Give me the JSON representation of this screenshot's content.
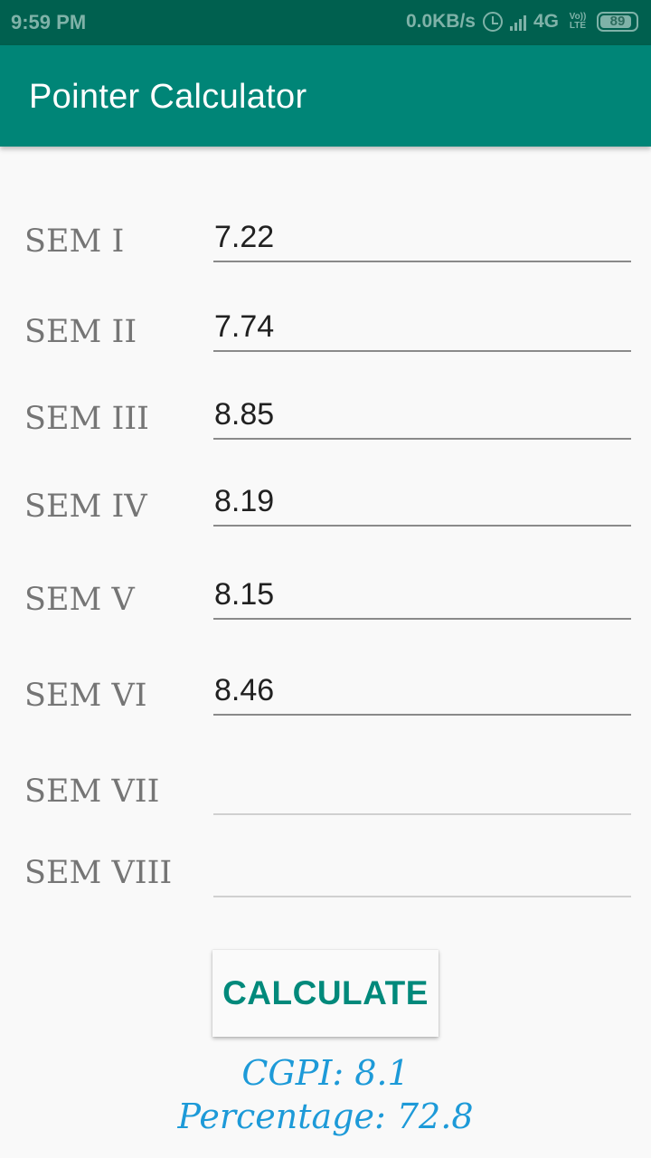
{
  "status_bar": {
    "time": "9:59 PM",
    "network_speed": "0.0KB/s",
    "network_type": "4G",
    "volte_top": "Vo))",
    "volte_bottom": "LTE",
    "battery": "89",
    "battery_level_percent": 89,
    "icons": [
      "alarm-icon",
      "signal-icon",
      "volte-icon",
      "battery-icon"
    ]
  },
  "app_bar": {
    "title": "Pointer Calculator",
    "color": "#008577"
  },
  "semesters": [
    {
      "label": "SEM I",
      "value": "7.22"
    },
    {
      "label": "SEM II",
      "value": "7.74"
    },
    {
      "label": "SEM III",
      "value": "8.85"
    },
    {
      "label": "SEM IV",
      "value": "8.19"
    },
    {
      "label": "SEM V",
      "value": "8.15"
    },
    {
      "label": "SEM VI",
      "value": "8.46"
    },
    {
      "label": "SEM VII",
      "value": ""
    },
    {
      "label": "SEM VIII",
      "value": ""
    }
  ],
  "calculate_button": {
    "label": "CALCULATE",
    "color": "#00897b"
  },
  "results": {
    "cgpi": "CGPI: 8.1",
    "percentage": "Percentage: 72.8",
    "color": "#1d9ad8"
  }
}
